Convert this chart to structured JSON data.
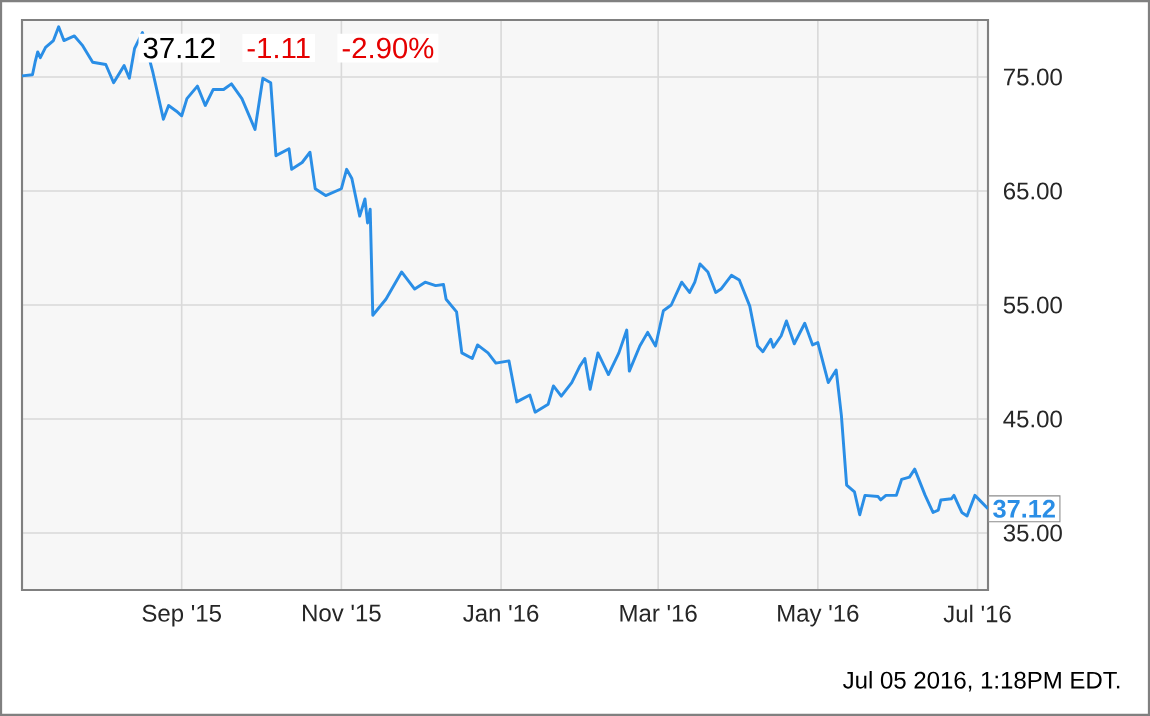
{
  "chart_data": {
    "type": "line",
    "x": [
      "2015-07-02",
      "2015-07-06",
      "2015-07-07",
      "2015-07-08",
      "2015-07-09",
      "2015-07-11",
      "2015-07-14",
      "2015-07-16",
      "2015-07-18",
      "2015-07-22",
      "2015-07-25",
      "2015-07-29",
      "2015-08-03",
      "2015-08-06",
      "2015-08-10",
      "2015-08-12",
      "2015-08-14",
      "2015-08-17",
      "2015-08-21",
      "2015-08-25",
      "2015-08-27",
      "2015-08-30",
      "2015-09-01",
      "2015-09-03",
      "2015-09-07",
      "2015-09-10",
      "2015-09-13",
      "2015-09-17",
      "2015-09-20",
      "2015-09-24",
      "2015-09-29",
      "2015-10-02",
      "2015-10-05",
      "2015-10-07",
      "2015-10-12",
      "2015-10-13",
      "2015-10-17",
      "2015-10-20",
      "2015-10-22",
      "2015-10-26",
      "2015-11-01",
      "2015-11-03",
      "2015-11-05",
      "2015-11-08",
      "2015-11-10",
      "2015-11-11",
      "2015-11-12",
      "2015-11-13",
      "2015-11-18",
      "2015-11-24",
      "2015-11-29",
      "2015-12-03",
      "2015-12-07",
      "2015-12-10",
      "2015-12-11",
      "2015-12-15",
      "2015-12-17",
      "2015-12-21",
      "2015-12-23",
      "2015-12-27",
      "2015-12-30",
      "2016-01-04",
      "2016-01-07",
      "2016-01-12",
      "2016-01-14",
      "2016-01-19",
      "2016-01-21",
      "2016-01-24",
      "2016-01-28",
      "2016-01-31",
      "2016-02-02",
      "2016-02-04",
      "2016-02-07",
      "2016-02-11",
      "2016-02-15",
      "2016-02-18",
      "2016-02-19",
      "2016-02-23",
      "2016-02-26",
      "2016-02-29",
      "2016-03-03",
      "2016-03-06",
      "2016-03-10",
      "2016-03-13",
      "2016-03-15",
      "2016-03-17",
      "2016-03-20",
      "2016-03-23",
      "2016-03-25",
      "2016-03-29",
      "2016-04-01",
      "2016-04-05",
      "2016-04-08",
      "2016-04-10",
      "2016-04-13",
      "2016-04-14",
      "2016-04-17",
      "2016-04-19",
      "2016-04-22",
      "2016-04-26",
      "2016-04-29",
      "2016-05-01",
      "2016-05-05",
      "2016-05-08",
      "2016-05-10",
      "2016-05-12",
      "2016-05-15",
      "2016-05-17",
      "2016-05-19",
      "2016-05-24",
      "2016-05-25",
      "2016-05-27",
      "2016-05-31",
      "2016-06-02",
      "2016-06-05",
      "2016-06-07",
      "2016-06-11",
      "2016-06-14",
      "2016-06-16",
      "2016-06-17",
      "2016-06-21",
      "2016-06-22",
      "2016-06-25",
      "2016-06-27",
      "2016-06-30",
      "2016-07-03",
      "2016-07-05"
    ],
    "series": [
      {
        "color": "#2a8ee6",
        "values": [
          75.1,
          75.2,
          76.3,
          77.2,
          76.7,
          77.6,
          78.2,
          79.4,
          78.2,
          78.6,
          77.8,
          76.3,
          76.1,
          74.5,
          76.0,
          74.9,
          77.5,
          78.9,
          75.4,
          71.3,
          72.5,
          72.0,
          71.6,
          73.1,
          74.2,
          72.5,
          73.9,
          73.9,
          74.4,
          73.1,
          70.4,
          74.9,
          74.5,
          68.1,
          68.7,
          66.9,
          67.5,
          68.4,
          65.2,
          64.6,
          65.2,
          66.9,
          66.1,
          62.8,
          64.3,
          62.2,
          63.4,
          54.1,
          55.5,
          57.9,
          56.4,
          57.0,
          56.7,
          56.8,
          55.5,
          54.4,
          50.8,
          50.3,
          51.5,
          50.8,
          49.9,
          50.1,
          46.5,
          47.1,
          45.6,
          46.3,
          47.9,
          47.0,
          48.2,
          49.6,
          50.3,
          47.6,
          50.8,
          48.9,
          50.8,
          52.8,
          49.2,
          51.4,
          52.6,
          51.4,
          54.5,
          55.0,
          57.0,
          56.1,
          57.0,
          58.6,
          57.9,
          56.1,
          56.4,
          57.6,
          57.2,
          54.9,
          51.4,
          50.9,
          52.0,
          51.3,
          52.3,
          53.6,
          51.6,
          53.4,
          51.5,
          51.7,
          48.2,
          49.3,
          45.3,
          39.2,
          38.6,
          36.6,
          38.3,
          38.2,
          37.9,
          38.3,
          38.3,
          39.7,
          39.9,
          40.6,
          38.3,
          36.8,
          37.0,
          37.9,
          38.0,
          38.3,
          36.8,
          36.5,
          38.3,
          37.6,
          37.12
        ]
      }
    ],
    "xlim": [
      "2015-07-02",
      "2016-07-05"
    ],
    "xticks": [
      {
        "value": "2015-09-01",
        "label": "Sep '15"
      },
      {
        "value": "2015-11-01",
        "label": "Nov '15"
      },
      {
        "value": "2016-01-01",
        "label": "Jan '16"
      },
      {
        "value": "2016-03-01",
        "label": "Mar '16"
      },
      {
        "value": "2016-05-01",
        "label": "May '16"
      },
      {
        "value": "2016-07-01",
        "label": "Jul '16"
      }
    ],
    "ylim": [
      30,
      80
    ],
    "yticks": [
      {
        "value": 35,
        "label": "35.00"
      },
      {
        "value": 45,
        "label": "45.00"
      },
      {
        "value": 55,
        "label": "55.00"
      },
      {
        "value": 65,
        "label": "65.00"
      },
      {
        "value": 75,
        "label": "75.00"
      }
    ],
    "grid": true,
    "annotations": [
      {
        "text": "37.12",
        "x": "2016-07-05",
        "y": 37.12
      },
      "37.12",
      "-1.11",
      "-2.90%",
      "Jul 05 2016, 1:18PM EDT."
    ]
  }
}
